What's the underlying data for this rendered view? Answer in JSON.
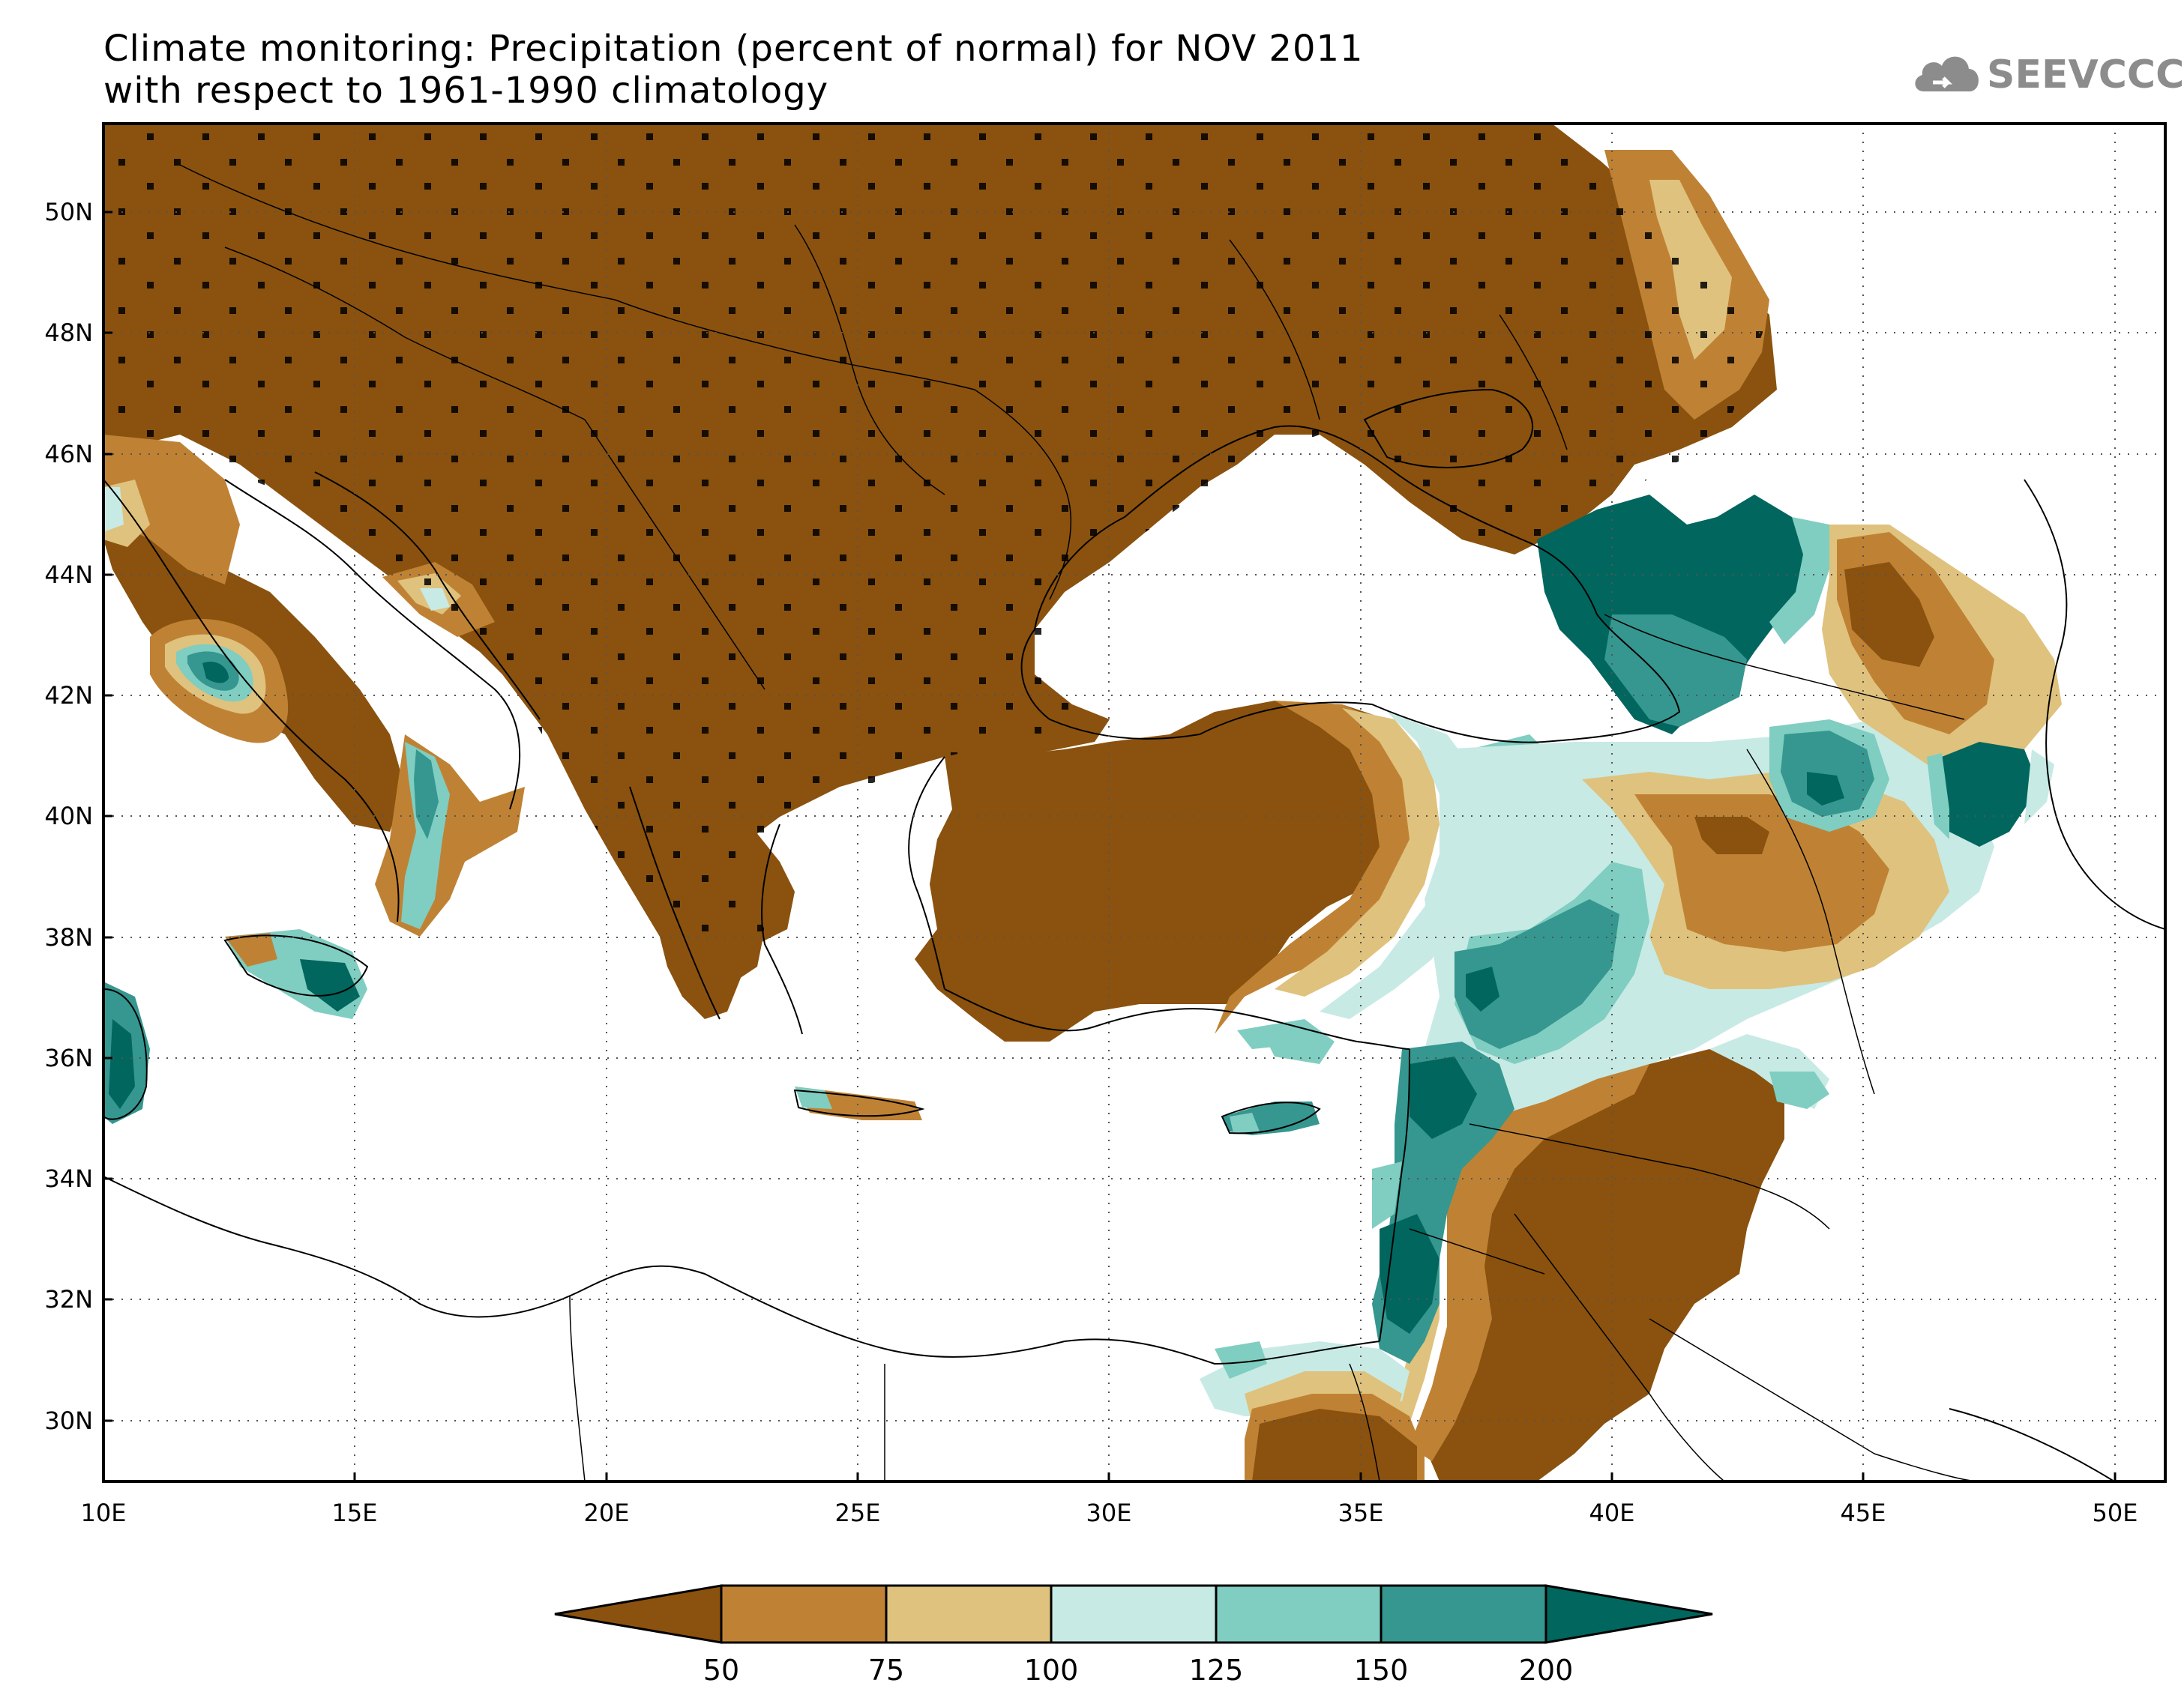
{
  "title": {
    "line1": "Climate monitoring: Precipitation (percent of normal) for NOV 2011",
    "line2": "with respect to 1961-1990 climatology"
  },
  "logo": {
    "text": "SEEVCCC",
    "icon": "cloud-icon",
    "color": "#8c8c8c"
  },
  "map": {
    "lon_range": [
      10,
      51
    ],
    "lat_range": [
      29,
      51.5
    ],
    "lon_ticks": [
      "10E",
      "15E",
      "20E",
      "25E",
      "30E",
      "35E",
      "40E",
      "45E",
      "50E"
    ],
    "lat_ticks": [
      "30N",
      "32N",
      "34N",
      "36N",
      "38N",
      "40N",
      "42N",
      "44N",
      "46N",
      "48N",
      "50N"
    ],
    "grid": "dotted"
  },
  "colorbar": {
    "labels": [
      "50",
      "75",
      "100",
      "125",
      "150",
      "200"
    ],
    "colors": [
      "#8a520e",
      "#bf8234",
      "#dfc27d",
      "#c7eae5",
      "#80cdc1",
      "#35978f",
      "#01665e"
    ]
  }
}
